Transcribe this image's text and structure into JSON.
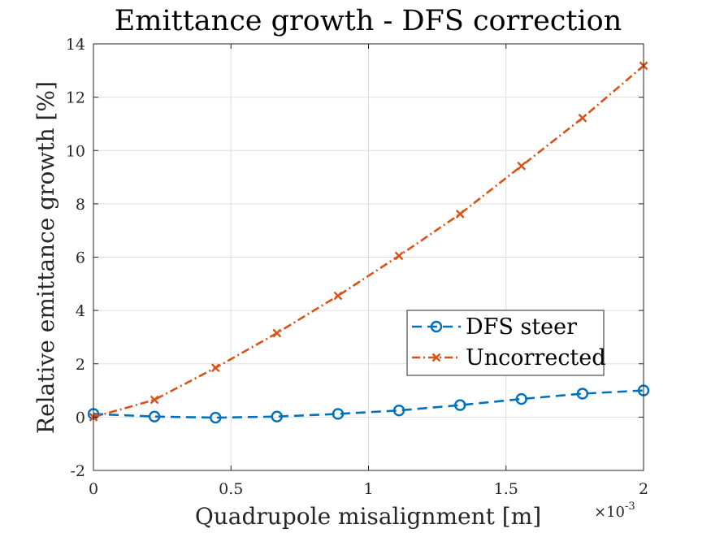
{
  "chart_data": {
    "type": "line",
    "title": "Emittance growth - DFS correction",
    "xlabel": "Quadrupole misalignment [m]",
    "ylabel": "Relative emittance growth [%]",
    "x_exponent_label": "×10",
    "x_exponent_power": "-3",
    "xlim": [
      0,
      2
    ],
    "ylim": [
      -2,
      14
    ],
    "x_ticks": [
      0,
      0.5,
      1,
      1.5,
      2
    ],
    "x_tick_labels": [
      "0",
      "0.5",
      "1",
      "1.5",
      "2"
    ],
    "y_ticks": [
      -2,
      0,
      2,
      4,
      6,
      8,
      10,
      12,
      14
    ],
    "y_tick_labels": [
      "-2",
      "0",
      "2",
      "4",
      "6",
      "8",
      "10",
      "12",
      "14"
    ],
    "grid": true,
    "legend_position": "center-right",
    "x": [
      0,
      0.222,
      0.444,
      0.667,
      0.889,
      1.111,
      1.333,
      1.556,
      1.778,
      2.0
    ],
    "series": [
      {
        "name": "DFS steer",
        "marker": "circle",
        "line": "dashed",
        "color": "#0072BD",
        "values": [
          0.12,
          0.02,
          -0.02,
          0.02,
          0.12,
          0.25,
          0.45,
          0.68,
          0.88,
          1.0
        ]
      },
      {
        "name": "Uncorrected",
        "marker": "x",
        "line": "dashdot",
        "color": "#D95319",
        "values": [
          0.0,
          0.65,
          1.85,
          3.15,
          4.55,
          6.05,
          7.62,
          9.42,
          11.22,
          13.18
        ]
      }
    ]
  }
}
